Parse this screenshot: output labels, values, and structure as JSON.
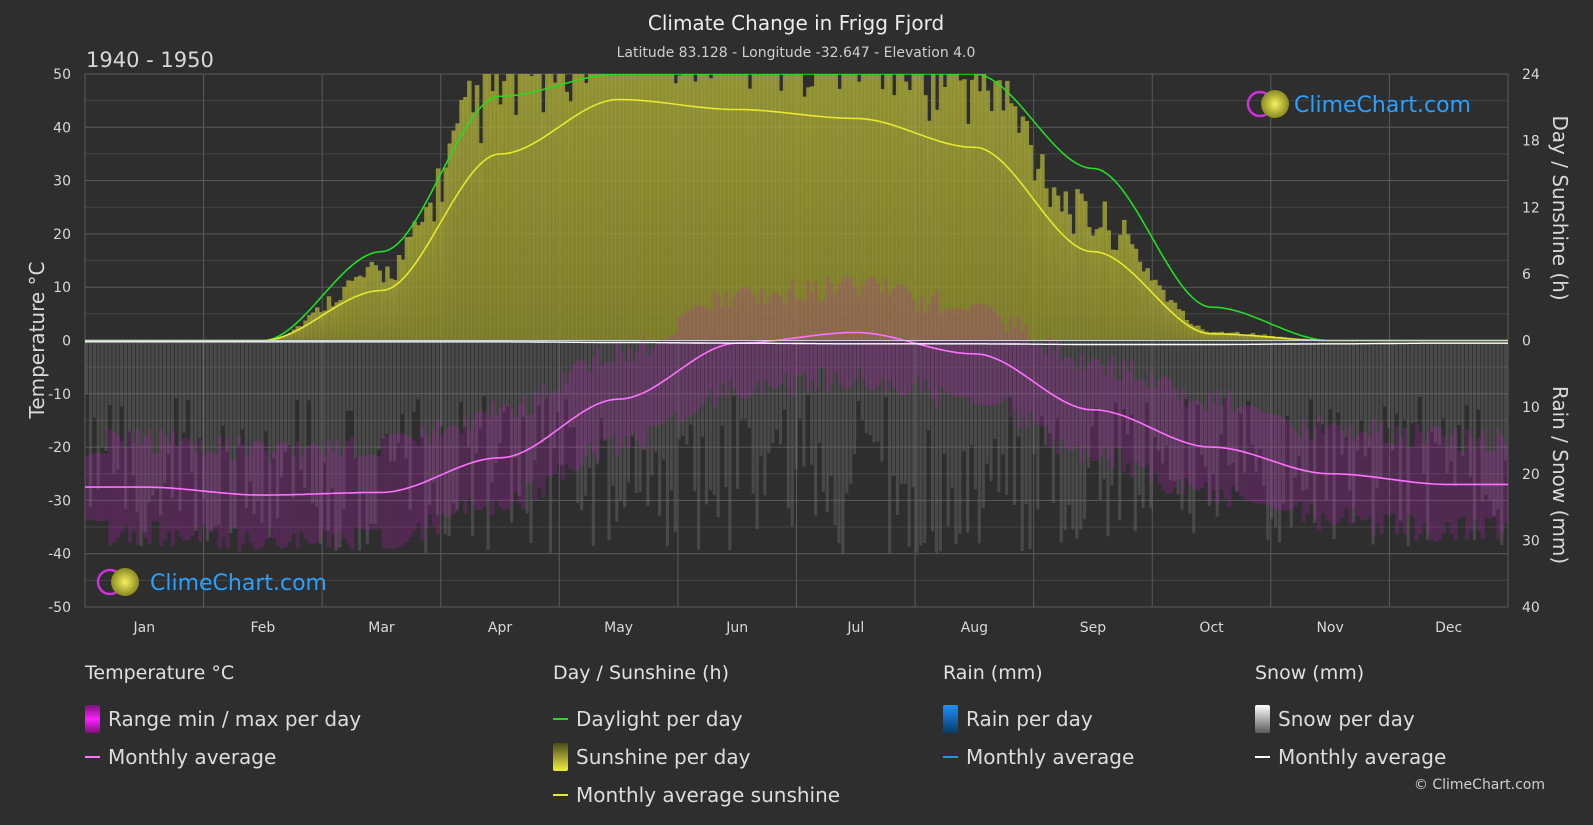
{
  "title": "Climate Change in Frigg Fjord",
  "subtitle": "Latitude 83.128 - Longitude -32.647 - Elevation 4.0",
  "period": "1940 - 1950",
  "brand": "ClimeChart.com",
  "copyright": "© ClimeChart.com",
  "colors": {
    "background": "#2e2e2f",
    "temp_range": "#d020d0",
    "temp_avg": "#ff70ff",
    "daylight": "#22dd22",
    "sunshine_fill": "#b8b83a",
    "sunshine_avg": "#e8e830",
    "rain": "#1e90ff",
    "snow": "#bbbbbb",
    "snow_avg": "#ffffff",
    "brand_text": "#2aa0ff"
  },
  "chart_data": {
    "type": "area",
    "months": [
      "Jan",
      "Feb",
      "Mar",
      "Apr",
      "May",
      "Jun",
      "Jul",
      "Aug",
      "Sep",
      "Oct",
      "Nov",
      "Dec"
    ],
    "axes": {
      "left": {
        "label": "Temperature °C",
        "min": -50,
        "max": 50,
        "ticks": [
          50,
          40,
          30,
          20,
          10,
          0,
          -10,
          -20,
          -30,
          -40,
          -50
        ]
      },
      "right_top": {
        "label": "Day / Sunshine (h)",
        "min": 0,
        "max": 24,
        "ticks": [
          24,
          18,
          12,
          6,
          0
        ]
      },
      "right_bottom": {
        "label": "Rain / Snow (mm)",
        "min": 0,
        "max": 40,
        "ticks": [
          0,
          10,
          20,
          30,
          40
        ]
      }
    },
    "series": [
      {
        "name": "Monthly average",
        "group": "Temperature °C",
        "unit": "°C",
        "values": [
          -27.5,
          -29.0,
          -28.5,
          -22.0,
          -11.0,
          -0.5,
          1.5,
          -2.5,
          -13.0,
          -20.0,
          -25.0,
          -27.0
        ]
      },
      {
        "name": "Daylight per day",
        "group": "Day / Sunshine (h)",
        "unit": "h",
        "values": [
          0.0,
          0.0,
          8.0,
          22.0,
          24.0,
          24.0,
          24.0,
          24.0,
          15.5,
          3.0,
          0.0,
          0.0
        ]
      },
      {
        "name": "Monthly average sunshine",
        "group": "Day / Sunshine (h)",
        "unit": "h",
        "values": [
          0.0,
          0.0,
          4.5,
          16.8,
          21.7,
          20.8,
          20.0,
          17.4,
          8.0,
          0.6,
          0.0,
          0.0
        ]
      },
      {
        "name": "Monthly average",
        "group": "Snow (mm)",
        "unit": "mm",
        "values": [
          0.2,
          0.2,
          0.2,
          0.2,
          0.3,
          0.4,
          0.5,
          0.5,
          0.6,
          0.6,
          0.5,
          0.4
        ]
      },
      {
        "name": "Monthly average",
        "group": "Rain (mm)",
        "unit": "mm",
        "values": [
          0,
          0,
          0,
          0,
          0,
          0,
          0,
          0,
          0,
          0,
          0,
          0
        ]
      }
    ],
    "grid": true
  },
  "legend": [
    {
      "header": "Temperature °C",
      "items": [
        {
          "label": "Range min / max per day",
          "swatch": "box",
          "color": "#d020d0"
        },
        {
          "label": "Monthly average",
          "swatch": "line",
          "color": "#ff70ff"
        }
      ]
    },
    {
      "header": "Day / Sunshine (h)",
      "items": [
        {
          "label": "Daylight per day",
          "swatch": "line",
          "color": "#22dd22"
        },
        {
          "label": "Sunshine per day",
          "swatch": "box",
          "color": "#c8c83a"
        },
        {
          "label": "Monthly average sunshine",
          "swatch": "line",
          "color": "#e8e830"
        }
      ]
    },
    {
      "header": "Rain (mm)",
      "items": [
        {
          "label": "Rain per day",
          "swatch": "box",
          "color": "#1e90ff"
        },
        {
          "label": "Monthly average",
          "swatch": "line",
          "color": "#1e90ff"
        }
      ]
    },
    {
      "header": "Snow (mm)",
      "items": [
        {
          "label": "Snow per day",
          "swatch": "box",
          "color": "#cccccc"
        },
        {
          "label": "Monthly average",
          "swatch": "line",
          "color": "#ffffff"
        }
      ]
    }
  ]
}
